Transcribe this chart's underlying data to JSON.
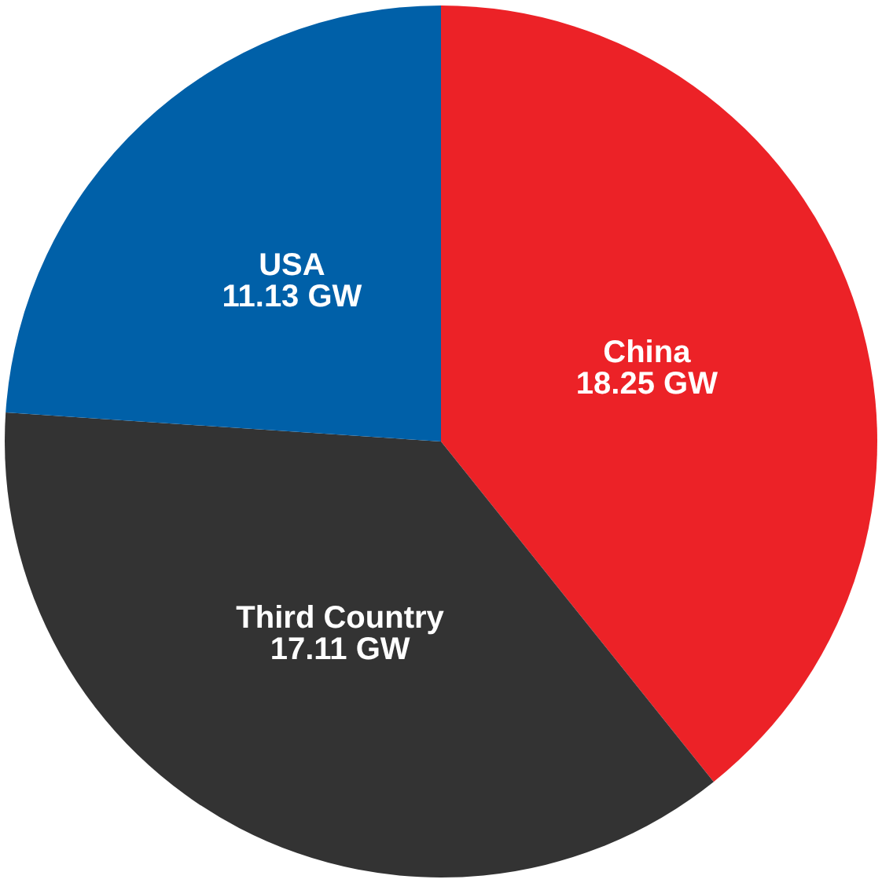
{
  "chart_data": {
    "type": "pie",
    "categories": [
      "China",
      "Third Country",
      "USA"
    ],
    "values": [
      18.25,
      17.11,
      11.13
    ],
    "colors": [
      "#ec2227",
      "#333333",
      "#0060a8"
    ],
    "value_labels": [
      "18.25 GW",
      "17.11 GW",
      "11.13 GW"
    ],
    "legend": false
  }
}
